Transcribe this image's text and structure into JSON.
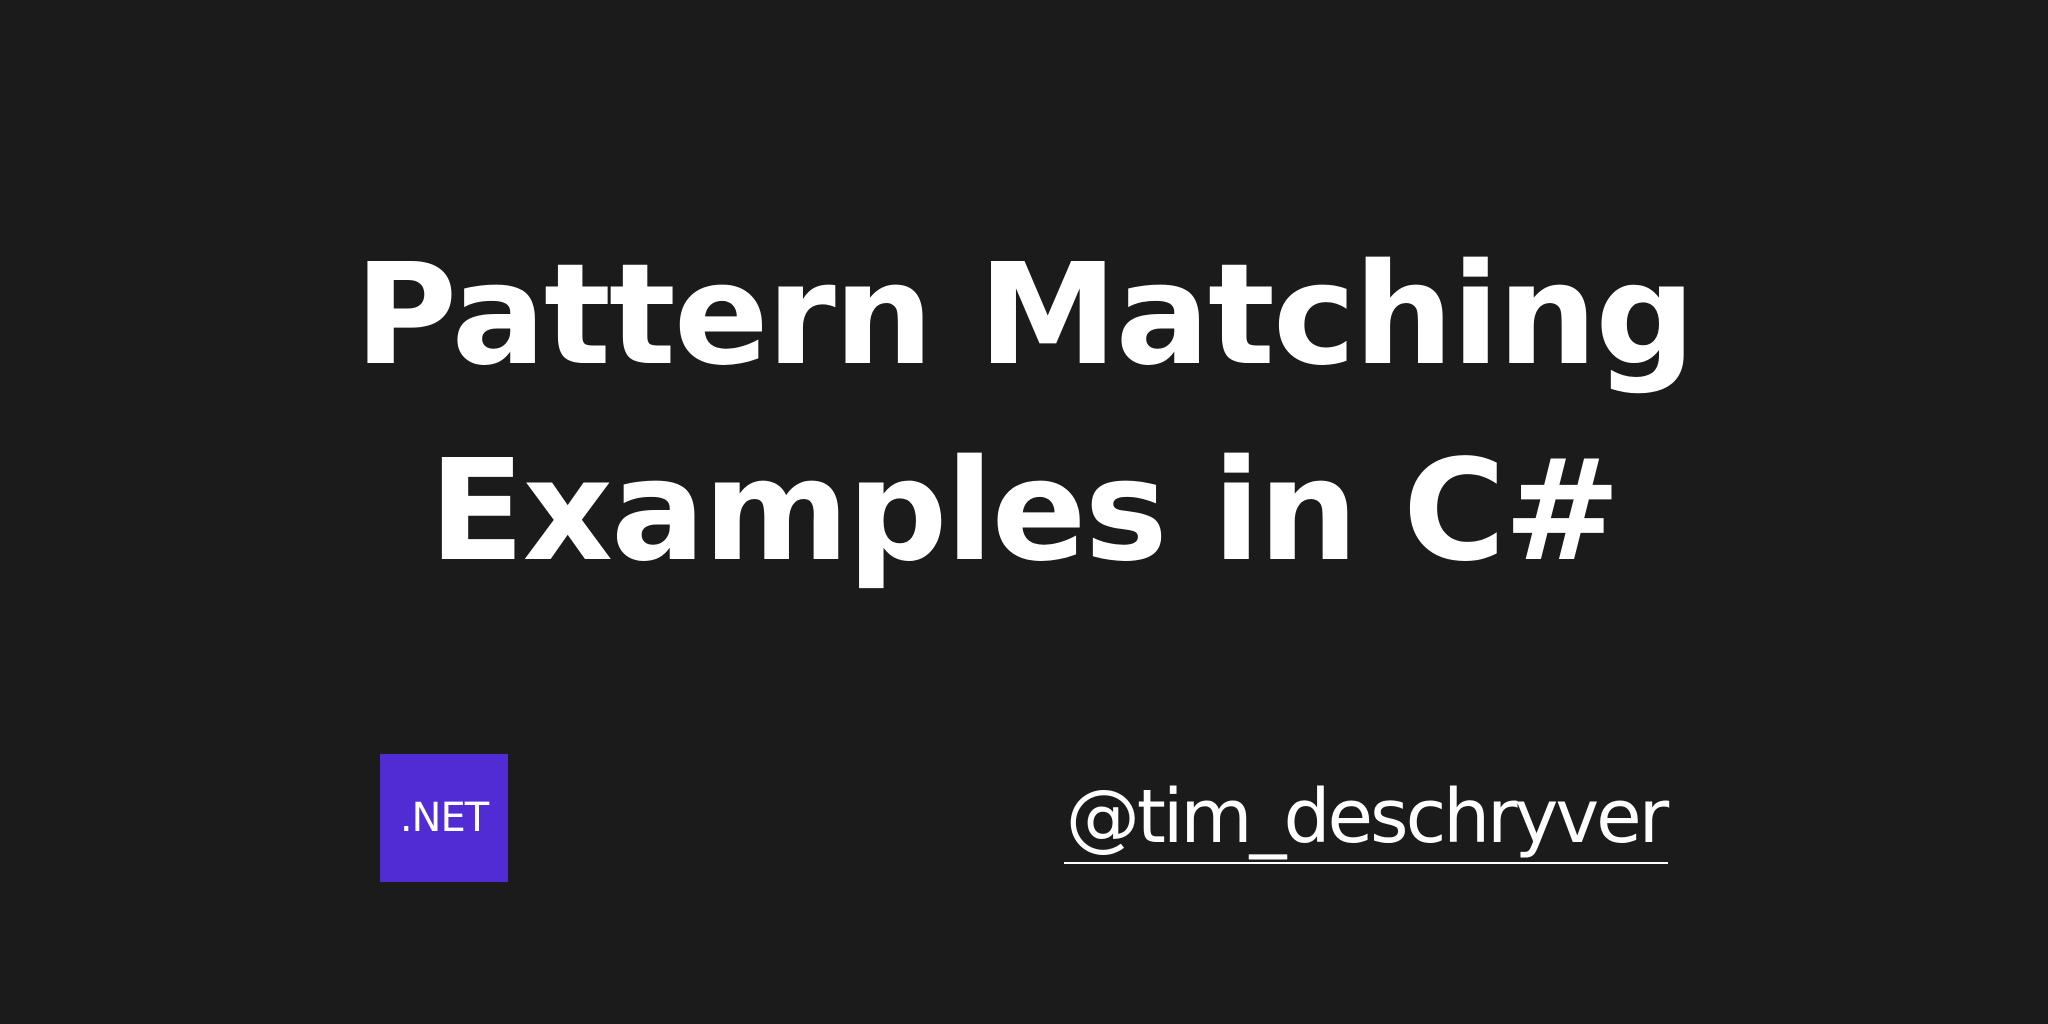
{
  "title": {
    "line1": "Pattern Matching",
    "line2": "Examples in C#"
  },
  "logo": {
    "label": ".NET",
    "color": "#512bd4"
  },
  "handle": "@tim_deschryver",
  "colors": {
    "background": "#1b1b1c",
    "text": "#ffffff"
  }
}
